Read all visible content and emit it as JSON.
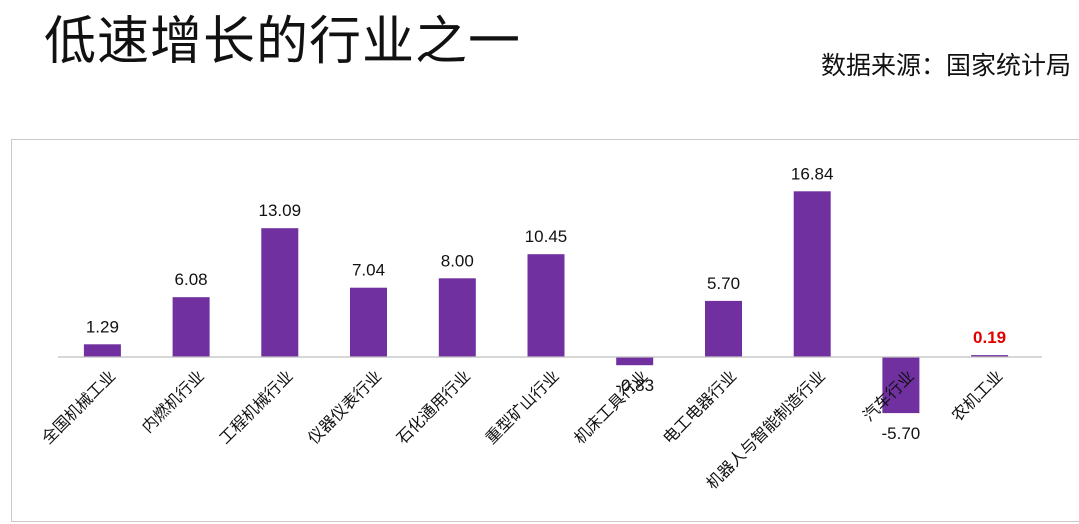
{
  "header": {
    "title": "低速增长的行业之一",
    "source": "数据来源：国家统计局"
  },
  "chart_data": {
    "type": "bar",
    "title": "",
    "xlabel": "",
    "ylabel": "",
    "ylim": [
      -8,
      18
    ],
    "grid": false,
    "legend": "none",
    "categories": [
      "全国机械工业",
      "内燃机行业",
      "工程机械行业",
      "仪器仪表行业",
      "石化通用行业",
      "重型矿山行业",
      "机床工具行业",
      "电工电器行业",
      "机器人与智能制造行业",
      "汽车行业",
      "农机工业"
    ],
    "values": [
      1.29,
      6.08,
      13.09,
      7.04,
      8.0,
      10.45,
      -0.83,
      5.7,
      16.84,
      -5.7,
      0.19
    ],
    "value_labels": [
      "1.29",
      "6.08",
      "13.09",
      "7.04",
      "8.00",
      "10.45",
      "-0.83",
      "5.70",
      "16.84",
      "-5.70",
      "0.19"
    ],
    "highlight_index": 10,
    "colors": {
      "bar": "#7030a0",
      "highlight_label": "#e00000"
    }
  }
}
